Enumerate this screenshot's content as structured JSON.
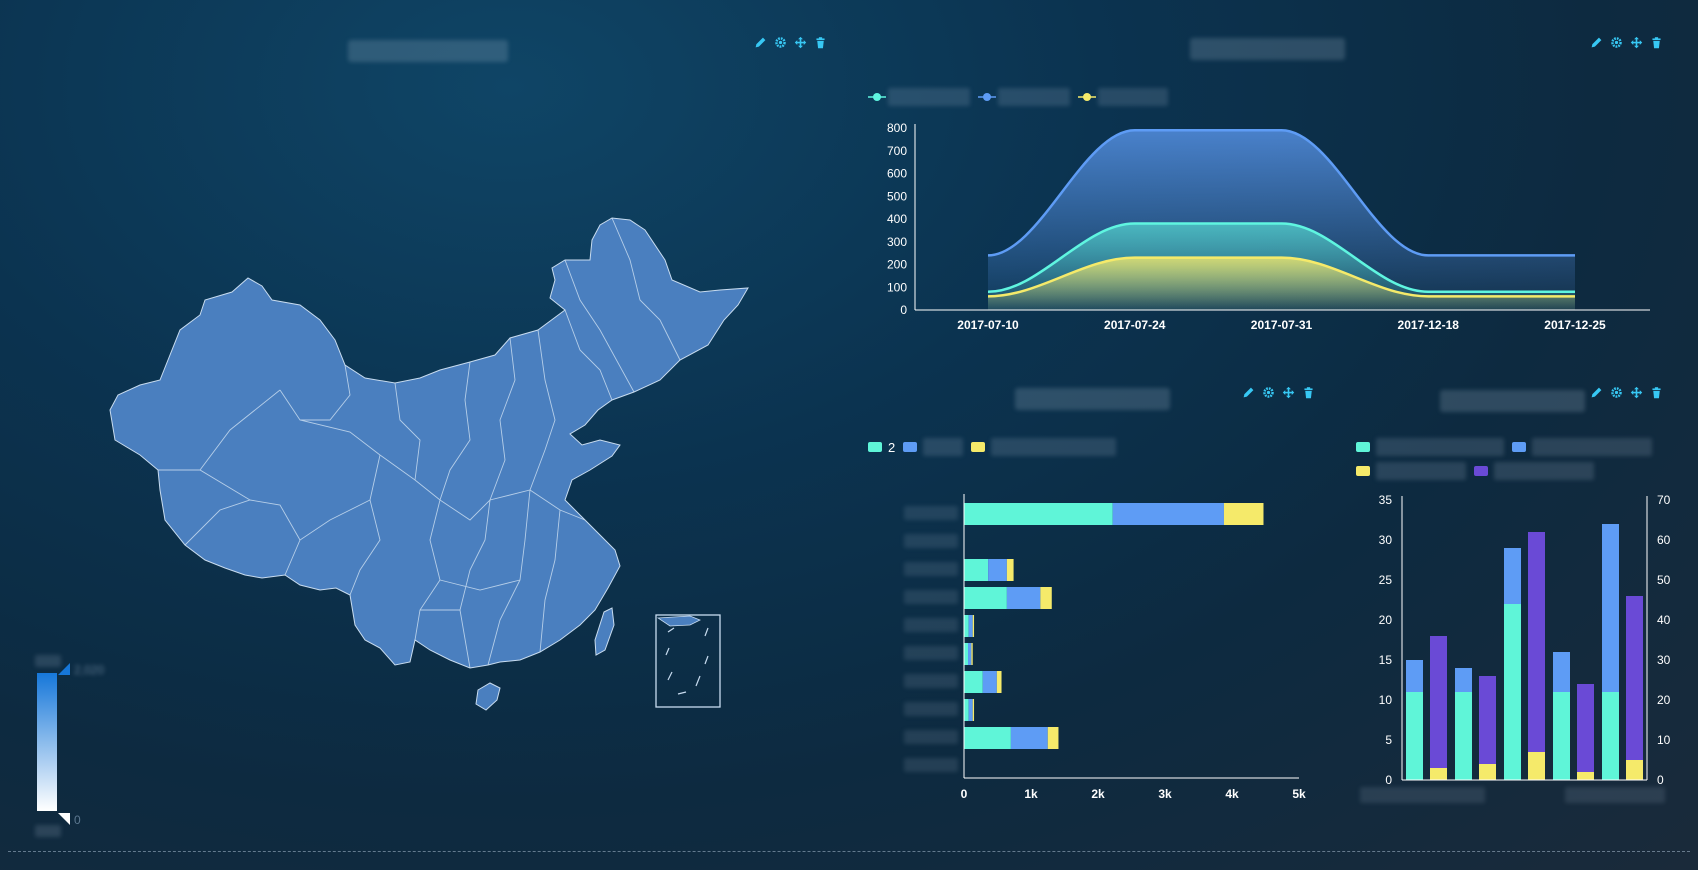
{
  "map_panel": {
    "visual_map": {
      "max_label": "2,020",
      "min_label": "0",
      "low_color": "#ffffff",
      "high_color": "#1677d9"
    },
    "region_color": "#4a7fbf",
    "border_color": "#c8dcf0"
  },
  "area_panel": {
    "chart_data": {
      "type": "area",
      "x": [
        "2017-07-10",
        "2017-07-24",
        "2017-07-31",
        "2017-12-18",
        "2017-12-25"
      ],
      "ylim": [
        0,
        800
      ],
      "yticks": [
        "800",
        "700",
        "600",
        "500",
        "400",
        "300",
        "200",
        "100",
        "0"
      ],
      "series": [
        {
          "values": [
            240,
            790,
            790,
            240,
            240
          ],
          "color": "#5e9cf5"
        },
        {
          "values": [
            80,
            380,
            380,
            80,
            80
          ],
          "color": "#5ff5e0"
        },
        {
          "values": [
            60,
            230,
            230,
            60,
            60
          ],
          "color": "#f5ea6a"
        }
      ],
      "grid": false,
      "legend": "top-left"
    }
  },
  "hbar_panel": {
    "chart_data": {
      "type": "bar",
      "orientation": "horizontal",
      "stacked": true,
      "xlim": [
        0,
        5000
      ],
      "xticks": [
        "0",
        "1k",
        "2k",
        "3k",
        "4k",
        "5k"
      ],
      "series": [
        {
          "name": "2",
          "color": "#5ff5d8",
          "values": [
            2220,
            0,
            360,
            640,
            70,
            60,
            280,
            70,
            700,
            0
          ]
        },
        {
          "color": "#5e9cf5",
          "values": [
            1660,
            0,
            280,
            500,
            60,
            50,
            210,
            60,
            550,
            0
          ]
        },
        {
          "color": "#f5ea6a",
          "values": [
            590,
            0,
            100,
            170,
            20,
            20,
            70,
            20,
            160,
            0
          ]
        }
      ],
      "grid": false,
      "legend": "top-left"
    }
  },
  "vbar_panel": {
    "chart_data": {
      "type": "bar",
      "stacked": true,
      "ylim_left": [
        0,
        35
      ],
      "yticks_left": [
        "35",
        "30",
        "25",
        "20",
        "15",
        "10",
        "5",
        "0"
      ],
      "ylim_right": [
        0,
        70
      ],
      "yticks_right": [
        "70",
        "60",
        "50",
        "40",
        "30",
        "20",
        "10",
        "0"
      ],
      "groups": [
        {
          "left": [
            11,
            4
          ],
          "right": [
            3,
            33
          ]
        },
        {
          "left": [
            11,
            3
          ],
          "right": [
            4,
            22
          ]
        },
        {
          "left": [
            22,
            7
          ],
          "right": [
            7,
            55
          ]
        },
        {
          "left": [
            11,
            5
          ],
          "right": [
            2,
            22
          ]
        },
        {
          "left": [
            11,
            21
          ],
          "right": [
            5,
            41
          ]
        }
      ],
      "colors": [
        "#5ff5d8",
        "#5e9cf5",
        "#f5ea6a",
        "#6a4ad6"
      ],
      "grid": false,
      "legend": "top-left"
    }
  }
}
